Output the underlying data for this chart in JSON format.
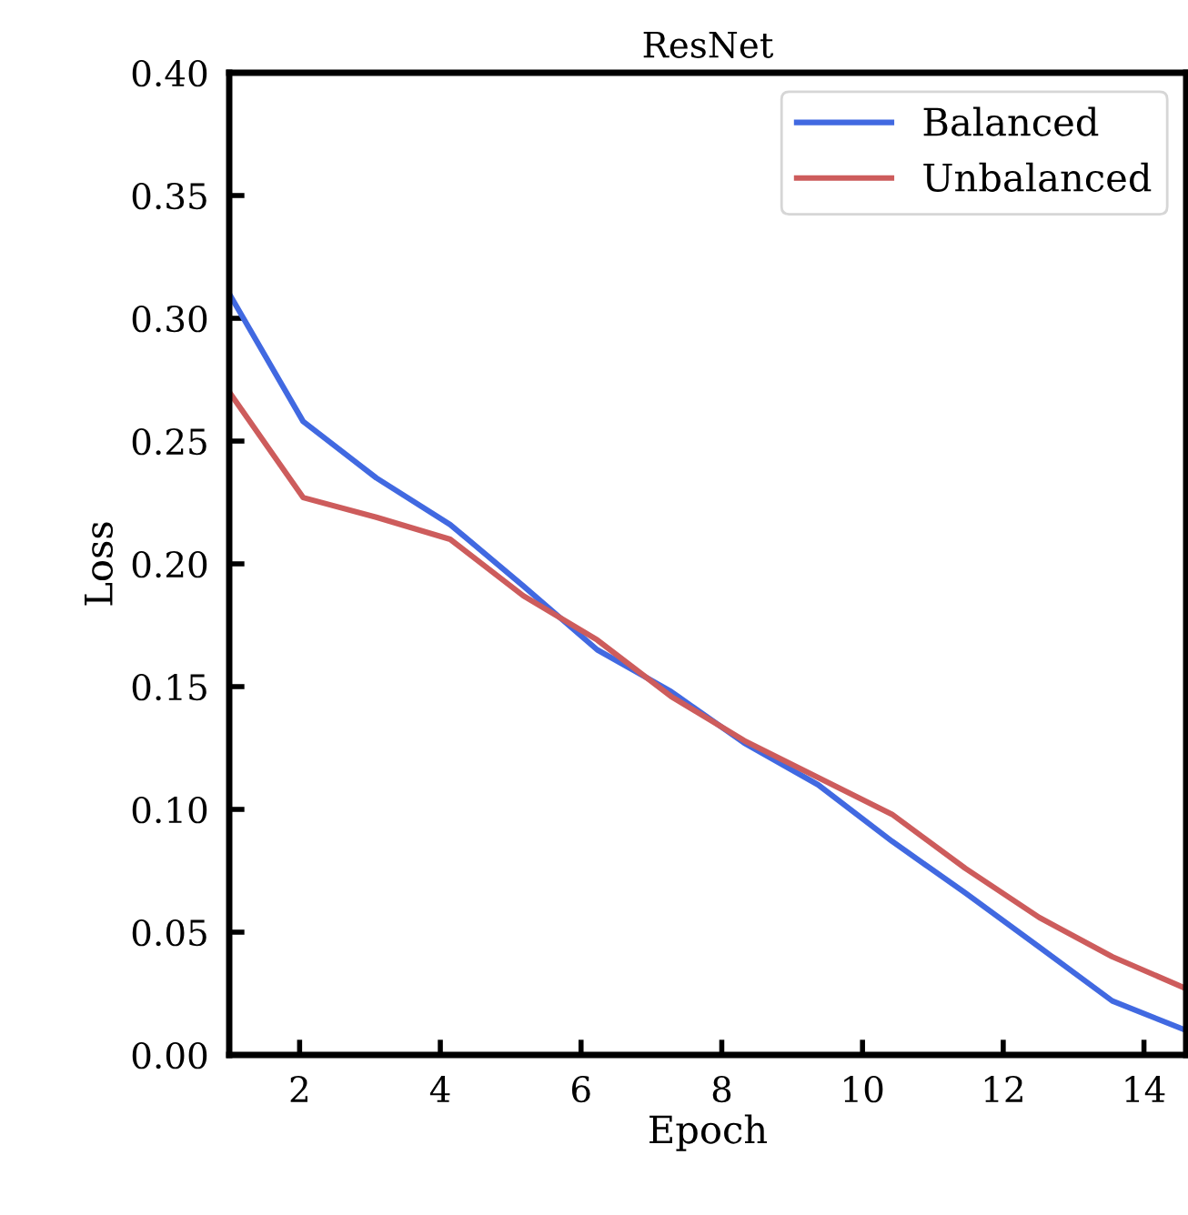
{
  "chart_data": {
    "type": "line",
    "title": "ResNet",
    "xlabel": "Epoch",
    "ylabel": "Loss",
    "x": [
      1,
      2.05,
      3.09,
      4.14,
      5.18,
      6.23,
      7.28,
      8.32,
      9.37,
      10.42,
      11.46,
      12.51,
      13.55,
      14.6
    ],
    "series": [
      {
        "name": "Balanced",
        "color": "#4169e1",
        "values": [
          0.31,
          0.258,
          0.235,
          0.216,
          0.191,
          0.165,
          0.148,
          0.127,
          0.11,
          0.087,
          0.066,
          0.044,
          0.022,
          0.01
        ]
      },
      {
        "name": "Unbalanced",
        "color": "#cd5c5c",
        "values": [
          0.27,
          0.227,
          0.219,
          0.21,
          0.187,
          0.169,
          0.146,
          0.128,
          0.113,
          0.098,
          0.076,
          0.056,
          0.04,
          0.027
        ]
      }
    ],
    "xlim": [
      1,
      14.6
    ],
    "ylim": [
      0,
      0.4
    ],
    "xticks": [
      2,
      4,
      6,
      8,
      10,
      12,
      14
    ],
    "yticks": [
      {
        "value": 0,
        "label": "0.00"
      },
      {
        "value": 0.05,
        "label": "0.05"
      },
      {
        "value": 0.1,
        "label": "0.10"
      },
      {
        "value": 0.15,
        "label": "0.15"
      },
      {
        "value": 0.2,
        "label": "0.20"
      },
      {
        "value": 0.25,
        "label": "0.25"
      },
      {
        "value": 0.3,
        "label": "0.30"
      },
      {
        "value": 0.35,
        "label": "0.35"
      },
      {
        "value": 0.4,
        "label": "0.40"
      }
    ],
    "legend": "top right",
    "grid": false,
    "marker": "none",
    "line_style": "solid"
  }
}
